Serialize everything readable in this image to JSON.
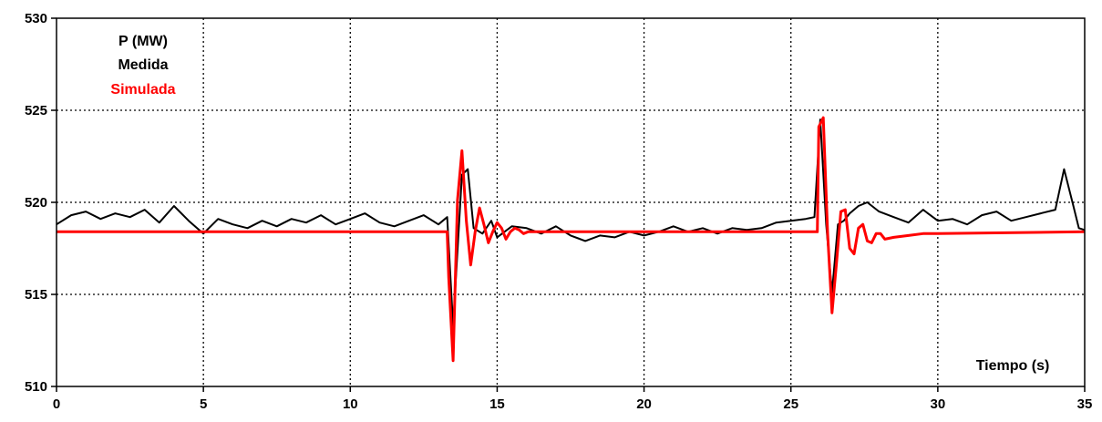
{
  "chart_data": {
    "type": "line",
    "title": "",
    "xlabel": "Tiempo (s)",
    "ylabel": "",
    "xlim": [
      0,
      35
    ],
    "ylim": [
      510,
      530
    ],
    "xticks": [
      0,
      5,
      10,
      15,
      20,
      25,
      30,
      35
    ],
    "yticks": [
      510,
      515,
      520,
      525,
      530
    ],
    "xtick_labels": [
      "0",
      "5",
      "10",
      "15",
      "20",
      "25",
      "30",
      "35"
    ],
    "ytick_labels": [
      "510",
      "515",
      "520",
      "525",
      "530"
    ],
    "grid": true,
    "legend": {
      "title": "P (MW)",
      "placement": "top-left",
      "entries": [
        "Medida",
        "Simulada"
      ]
    },
    "colors": {
      "Medida": "#000000",
      "Simulada": "#ff0000"
    },
    "series": [
      {
        "name": "Medida",
        "x": [
          0,
          0.5,
          1,
          1.5,
          2,
          2.5,
          3,
          3.5,
          4,
          4.5,
          5,
          5.5,
          6,
          6.5,
          7,
          7.5,
          8,
          8.5,
          9,
          9.5,
          10,
          10.5,
          11,
          11.5,
          12,
          12.5,
          13,
          13.3,
          13.5,
          13.8,
          14.0,
          14.2,
          14.5,
          14.8,
          15,
          15.5,
          16,
          16.5,
          17,
          17.5,
          18,
          18.5,
          19,
          19.5,
          20,
          20.5,
          21,
          21.5,
          22,
          22.5,
          23,
          23.5,
          24,
          24.5,
          25,
          25.5,
          25.8,
          26.0,
          26.2,
          26.4,
          26.6,
          26.8,
          27.0,
          27.3,
          27.6,
          28,
          28.5,
          29,
          29.5,
          30,
          30.5,
          31,
          31.5,
          32,
          32.5,
          33,
          33.5,
          34,
          34.3,
          34.6,
          34.8,
          35
        ],
        "y": [
          518.8,
          519.3,
          519.5,
          519.1,
          519.4,
          519.2,
          519.6,
          518.9,
          519.8,
          519.0,
          518.3,
          519.1,
          518.8,
          518.6,
          519.0,
          518.7,
          519.1,
          518.9,
          519.3,
          518.8,
          519.1,
          519.4,
          518.9,
          518.7,
          519.0,
          519.3,
          518.8,
          519.2,
          513.3,
          521.5,
          521.8,
          518.6,
          518.3,
          519.0,
          518.1,
          518.7,
          518.6,
          518.3,
          518.7,
          518.2,
          517.9,
          518.2,
          518.1,
          518.4,
          518.2,
          518.4,
          518.7,
          518.4,
          518.6,
          518.3,
          518.6,
          518.5,
          518.6,
          518.9,
          519.0,
          519.1,
          519.2,
          524.5,
          518.8,
          515.1,
          518.8,
          519.0,
          519.4,
          519.8,
          520.0,
          519.5,
          519.2,
          518.9,
          519.6,
          519.0,
          519.1,
          518.8,
          519.3,
          519.5,
          519.0,
          519.2,
          519.4,
          519.6,
          521.8,
          519.9,
          518.6,
          518.5
        ]
      },
      {
        "name": "Simulada",
        "x": [
          0,
          13.3,
          13.35,
          13.5,
          13.65,
          13.8,
          13.95,
          14.1,
          14.25,
          14.4,
          14.55,
          14.7,
          14.85,
          15.0,
          15.15,
          15.3,
          15.45,
          15.6,
          15.75,
          15.9,
          16.05,
          16.5,
          25.9,
          25.95,
          26.1,
          26.25,
          26.4,
          26.55,
          26.7,
          26.85,
          27.0,
          27.15,
          27.3,
          27.45,
          27.6,
          27.75,
          27.9,
          28.05,
          28.2,
          28.5,
          29,
          29.5,
          30,
          35
        ],
        "y": [
          518.4,
          518.4,
          515.9,
          511.4,
          520.1,
          522.8,
          519.0,
          516.6,
          518.4,
          519.7,
          518.8,
          517.8,
          518.4,
          518.9,
          518.6,
          518.0,
          518.4,
          518.6,
          518.5,
          518.3,
          518.4,
          518.4,
          518.4,
          524.1,
          524.6,
          518.3,
          514.0,
          516.7,
          519.5,
          519.6,
          517.5,
          517.2,
          518.6,
          518.8,
          517.9,
          517.8,
          518.3,
          518.3,
          518.0,
          518.1,
          518.2,
          518.3,
          518.3,
          518.4
        ]
      }
    ]
  }
}
